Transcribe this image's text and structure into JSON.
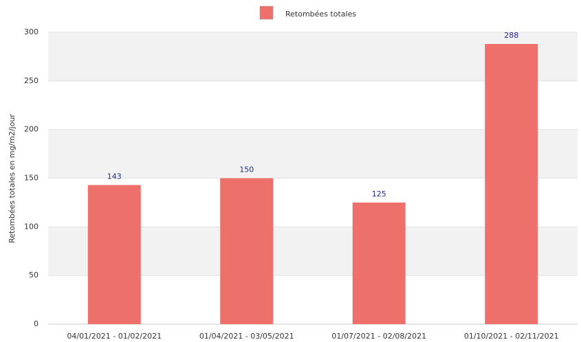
{
  "chart_data": {
    "type": "bar",
    "categories": [
      "04/01/2021 - 01/02/2021",
      "01/04/2021 - 03/05/2021",
      "01/07/2021 - 02/08/2021",
      "01/10/2021 - 02/11/2021"
    ],
    "series": [
      {
        "name": "Retombées totales",
        "color": "#ee706b",
        "values": [
          143,
          150,
          125,
          288
        ]
      }
    ],
    "y_label": "Retombées totales en mg/m2/jour",
    "ylim": [
      0,
      300
    ],
    "yticks": [
      0,
      50,
      100,
      150,
      200,
      250,
      300
    ],
    "grid": true,
    "alternate_bands": true,
    "legend": "top"
  }
}
